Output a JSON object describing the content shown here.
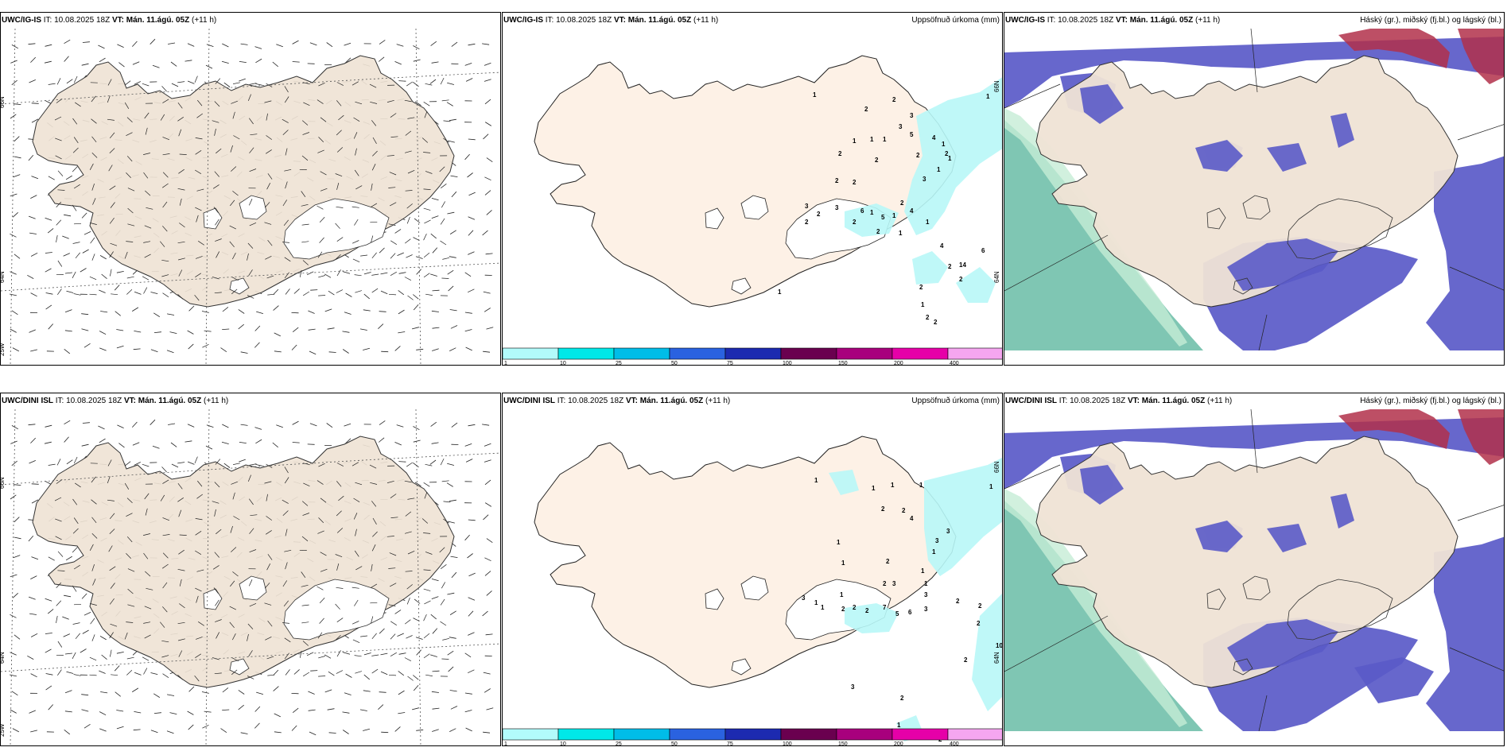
{
  "rows": [
    {
      "model": "UWC/IG-IS",
      "it_label": "IT:",
      "it_value": "10.08.2025 18Z",
      "vt_label": "VT:",
      "vt_value": "Mán. 11.ágú. 05Z",
      "lead": "(+11 h)"
    },
    {
      "model": "UWC/DINI ISL",
      "it_label": "IT:",
      "it_value": "10.08.2025 18Z",
      "vt_label": "VT:",
      "vt_value": "Mán. 11.ágú. 05Z",
      "lead": "(+11 h)"
    }
  ],
  "precip_title": "Uppsöfnuð úrkoma (mm)",
  "cloud_title": "Háský (gr.), miðský (fj.bl.) og lágský (bl.)",
  "wind_axes": {
    "lat_labels": [
      "66N",
      "64N",
      "25W"
    ],
    "lon_labels": [
      "20W",
      "15W"
    ]
  },
  "precip_axes": {
    "lat_labels": [
      "66N",
      "64N"
    ]
  },
  "colorbar": {
    "ticks": [
      "1",
      "10",
      "25",
      "50",
      "75",
      "100",
      "150",
      "200",
      "400"
    ],
    "colors": [
      "#b2fbfb",
      "#00e8e8",
      "#00bde8",
      "#2a62e0",
      "#1c2ab0",
      "#6a004f",
      "#a8007d",
      "#e600a8",
      "#f5a6f0"
    ]
  },
  "precip_values": {
    "top": [
      "1",
      "2",
      "2",
      "3",
      "3",
      "5",
      "4",
      "1",
      "1",
      "1",
      "2",
      "2",
      "2",
      "1",
      "1",
      "2",
      "2",
      "3",
      "1",
      "2",
      "3",
      "2",
      "3",
      "2",
      "1",
      "1",
      "4",
      "1",
      "4",
      "14",
      "6",
      "2",
      "2",
      "1",
      "2",
      "2",
      "2",
      "1",
      "2",
      "6",
      "5",
      "2",
      "1",
      "2",
      "1"
    ],
    "bottom": [
      "1",
      "1",
      "1",
      "2",
      "2",
      "1",
      "4",
      "3",
      "1",
      "3",
      "2",
      "1",
      "2",
      "1",
      "1",
      "1",
      "3",
      "3",
      "1",
      "1",
      "3",
      "1",
      "2",
      "2",
      "2",
      "7",
      "5",
      "6",
      "3",
      "2",
      "2",
      "2",
      "2",
      "10",
      "3",
      "2",
      "1",
      "2",
      "1"
    ]
  },
  "colors": {
    "land": "#efe3d5",
    "land_precip": "#fdf1e6",
    "precip_light": "#b8f7f7",
    "mid_cloud": "#5a5ac8",
    "low_cloud": "#5fb8a0",
    "high_cloud": "#b2304a"
  }
}
